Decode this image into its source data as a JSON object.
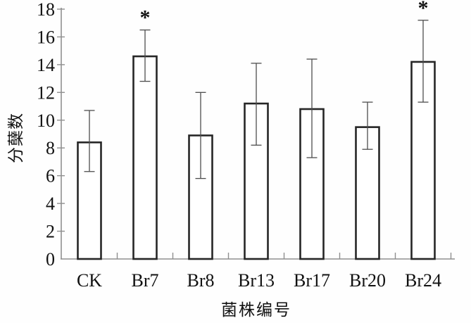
{
  "chart_data": {
    "type": "bar",
    "title": "",
    "xlabel": "菌株编号",
    "ylabel": "分蘖数",
    "categories": [
      "CK",
      "Br7",
      "Br8",
      "Br13",
      "Br17",
      "Br20",
      "Br24"
    ],
    "values": [
      8.4,
      14.6,
      8.9,
      11.2,
      10.8,
      9.5,
      14.2
    ],
    "error_bars": {
      "upper": [
        10.7,
        16.5,
        12.0,
        14.1,
        14.4,
        11.3,
        17.2
      ],
      "lower": [
        6.3,
        12.8,
        5.8,
        8.2,
        7.3,
        7.9,
        11.3
      ]
    },
    "significance": [
      "",
      "*",
      "",
      "",
      "",
      "",
      "*"
    ],
    "ylim": [
      0,
      18
    ],
    "ytick_step": 2,
    "yticks": [
      0,
      2,
      4,
      6,
      8,
      10,
      12,
      14,
      16,
      18
    ],
    "grid": false,
    "legend_position": "none",
    "colors": {
      "bar_fill": "#ffffff",
      "bar_stroke": "#262626",
      "error_bar": "#4d4d4d",
      "axis": "#8f8f8f",
      "text": "#111111"
    }
  }
}
